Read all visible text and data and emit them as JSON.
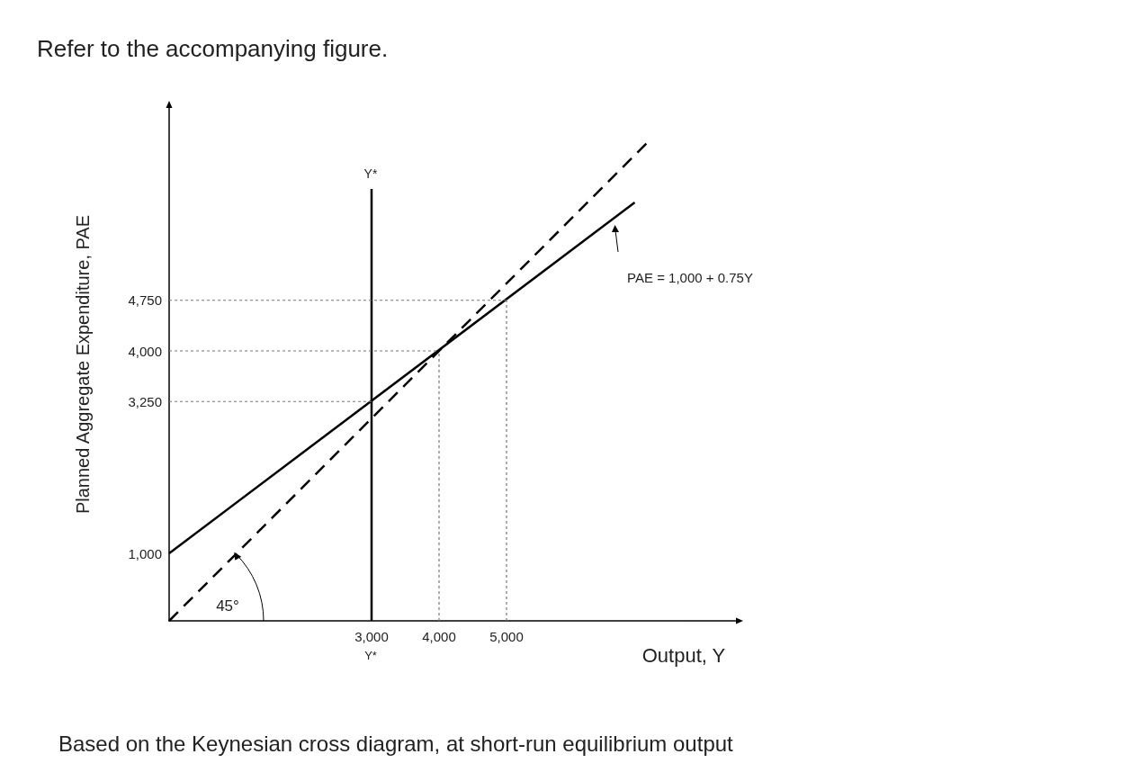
{
  "chart_data": {
    "type": "line",
    "title": "Refer to the accompanying figure.",
    "xlabel": "Output, Y",
    "ylabel": "Planned Aggregate Expenditure, PAE",
    "xlim": [
      0,
      8400
    ],
    "ylim": [
      0,
      7600
    ],
    "xticks": [
      {
        "value": 3000,
        "label": "3,000"
      },
      {
        "value": 4000,
        "label": "4,000"
      },
      {
        "value": 5000,
        "label": "5,000"
      }
    ],
    "yticks": [
      {
        "value": 1000,
        "label": "1,000"
      },
      {
        "value": 3250,
        "label": "3,250"
      },
      {
        "value": 4000,
        "label": "4,000"
      },
      {
        "value": 4750,
        "label": "4,750"
      }
    ],
    "grid": false,
    "marker": "none",
    "series": [
      {
        "color": "#000000",
        "x": [
          0,
          6900
        ],
        "values": [
          1000,
          6200
        ],
        "line_style": "solid"
      },
      {
        "color": "#000000",
        "x": [
          0,
          7100
        ],
        "values": [
          0,
          7100
        ],
        "line_style": "dashed"
      },
      {
        "color": "#000000",
        "x": [
          3000,
          3000
        ],
        "values": [
          0,
          6400
        ],
        "line_style": "solid"
      },
      {
        "color": "#777777",
        "x": [
          0,
          5000
        ],
        "values": [
          4750,
          4750
        ],
        "line_style": "dotted"
      },
      {
        "color": "#777777",
        "x": [
          0,
          4000
        ],
        "values": [
          4000,
          4000
        ],
        "line_style": "dotted"
      },
      {
        "color": "#777777",
        "x": [
          0,
          3000
        ],
        "values": [
          3250,
          3250
        ],
        "line_style": "dotted"
      },
      {
        "color": "#777777",
        "x": [
          4000,
          4000
        ],
        "values": [
          0,
          4000
        ],
        "line_style": "dotted"
      },
      {
        "color": "#777777",
        "x": [
          5000,
          5000
        ],
        "values": [
          0,
          4750
        ],
        "line_style": "dotted"
      }
    ],
    "annotations": [
      "PAE = 1,000 + 0.75Y",
      "Y*",
      "Y*",
      "45°",
      "Based on the Keynesian cross diagram, at short-run equilibrium output"
    ]
  }
}
